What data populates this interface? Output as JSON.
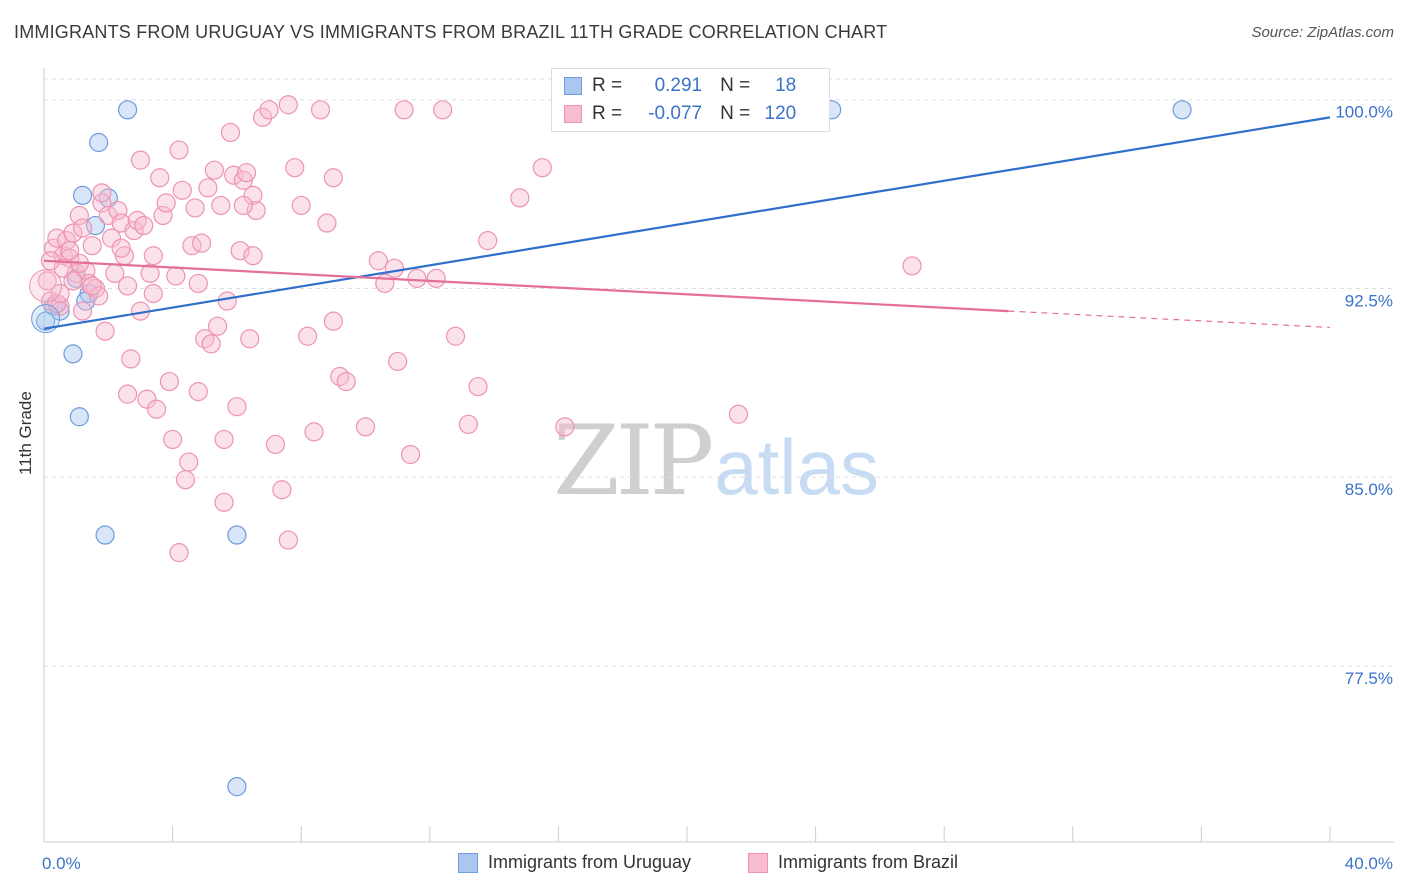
{
  "title": "IMMIGRANTS FROM URUGUAY VS IMMIGRANTS FROM BRAZIL 11TH GRADE CORRELATION CHART",
  "source": "Source: ZipAtlas.com",
  "watermark": {
    "zip": "ZIP",
    "atlas": "atlas"
  },
  "legend": {
    "uruguay": {
      "r_label": "R =",
      "r_value": "0.291",
      "n_label": "N =",
      "n_value": "18"
    },
    "brazil": {
      "r_label": "R =",
      "r_value": "-0.077",
      "n_label": "N =",
      "n_value": "120"
    }
  },
  "colors": {
    "uruguay_fill": "#aac8ef",
    "uruguay_stroke": "#6d9bdc",
    "uruguay_line": "#2f6fcb",
    "brazil_fill": "#f7bcd0",
    "brazil_stroke": "#ee93b2",
    "brazil_line": "#e4709a",
    "tick_label": "#3b73c8",
    "grid": "#dddddd"
  },
  "chart_data": {
    "type": "scatter",
    "xlabel": "",
    "ylabel": "11th Grade",
    "xlim": [
      0,
      40
    ],
    "ylim": [
      70.5,
      101.5
    ],
    "x_tick_labels": [
      {
        "value": 0,
        "label": "0.0%"
      },
      {
        "value": 40,
        "label": "40.0%"
      }
    ],
    "x_minor_ticks": [
      0,
      4,
      8,
      12,
      16,
      20,
      24,
      28,
      32,
      36,
      40
    ],
    "y_ticks": [
      {
        "value": 100,
        "label": "100.0%"
      },
      {
        "value": 92.5,
        "label": "92.5%"
      },
      {
        "value": 85,
        "label": "85.0%"
      },
      {
        "value": 77.5,
        "label": "77.5%"
      }
    ],
    "grid": true,
    "legend_position": "top-center",
    "series": [
      {
        "name": "Immigrants from Uruguay",
        "key": "uruguay",
        "points": [
          [
            0.05,
            91.2
          ],
          [
            0.3,
            91.8
          ],
          [
            0.5,
            91.6
          ],
          [
            1.4,
            92.3
          ],
          [
            1.3,
            92.0
          ],
          [
            1.0,
            92.9
          ],
          [
            0.9,
            89.9
          ],
          [
            1.1,
            87.4
          ],
          [
            1.2,
            96.2
          ],
          [
            2.0,
            96.1
          ],
          [
            1.6,
            95.0
          ],
          [
            1.7,
            98.3
          ],
          [
            2.6,
            99.6
          ],
          [
            1.9,
            82.7
          ],
          [
            6.0,
            82.7
          ],
          [
            6.0,
            72.7
          ],
          [
            24.5,
            99.6
          ],
          [
            35.4,
            99.6
          ]
        ],
        "trend": {
          "x": [
            0,
            40
          ],
          "y": [
            90.9,
            99.3
          ]
        }
      },
      {
        "name": "Immigrants from Brazil",
        "key": "brazil",
        "points": [
          [
            0.1,
            92.8
          ],
          [
            0.2,
            92.0
          ],
          [
            0.3,
            94.1
          ],
          [
            0.4,
            94.5
          ],
          [
            0.5,
            91.8
          ],
          [
            0.6,
            93.8
          ],
          [
            0.7,
            94.4
          ],
          [
            0.8,
            93.7
          ],
          [
            0.9,
            94.7
          ],
          [
            1.0,
            93.1
          ],
          [
            1.1,
            95.4
          ],
          [
            1.2,
            94.9
          ],
          [
            1.3,
            93.2
          ],
          [
            1.4,
            92.7
          ],
          [
            1.5,
            94.2
          ],
          [
            1.6,
            92.5
          ],
          [
            1.7,
            92.2
          ],
          [
            1.8,
            95.9
          ],
          [
            1.9,
            90.8
          ],
          [
            2.0,
            95.4
          ],
          [
            2.1,
            94.5
          ],
          [
            2.2,
            93.1
          ],
          [
            2.3,
            95.6
          ],
          [
            2.4,
            95.1
          ],
          [
            2.5,
            93.8
          ],
          [
            2.6,
            92.6
          ],
          [
            2.7,
            89.7
          ],
          [
            2.8,
            94.8
          ],
          [
            2.9,
            95.2
          ],
          [
            3.0,
            91.6
          ],
          [
            3.1,
            95.0
          ],
          [
            3.2,
            88.1
          ],
          [
            3.3,
            93.1
          ],
          [
            3.4,
            93.8
          ],
          [
            3.5,
            87.7
          ],
          [
            3.6,
            96.9
          ],
          [
            3.7,
            95.4
          ],
          [
            3.8,
            95.9
          ],
          [
            3.9,
            88.8
          ],
          [
            4.0,
            86.5
          ],
          [
            4.1,
            93.0
          ],
          [
            4.2,
            98.0
          ],
          [
            4.3,
            96.4
          ],
          [
            4.4,
            84.9
          ],
          [
            4.5,
            85.6
          ],
          [
            4.6,
            94.2
          ],
          [
            4.7,
            95.7
          ],
          [
            4.8,
            88.4
          ],
          [
            4.9,
            94.3
          ],
          [
            5.0,
            90.5
          ],
          [
            5.1,
            96.5
          ],
          [
            5.2,
            90.3
          ],
          [
            5.3,
            97.2
          ],
          [
            5.4,
            91.0
          ],
          [
            5.5,
            95.8
          ],
          [
            5.6,
            86.5
          ],
          [
            5.7,
            92.0
          ],
          [
            5.8,
            98.7
          ],
          [
            5.9,
            97.0
          ],
          [
            6.0,
            87.8
          ],
          [
            6.1,
            94.0
          ],
          [
            6.2,
            96.8
          ],
          [
            6.3,
            97.1
          ],
          [
            6.4,
            90.5
          ],
          [
            6.5,
            96.2
          ],
          [
            6.6,
            95.6
          ],
          [
            6.8,
            99.3
          ],
          [
            7.0,
            99.6
          ],
          [
            7.2,
            86.3
          ],
          [
            7.4,
            84.5
          ],
          [
            7.6,
            99.8
          ],
          [
            7.8,
            97.3
          ],
          [
            8.0,
            95.8
          ],
          [
            8.2,
            90.6
          ],
          [
            8.4,
            86.8
          ],
          [
            8.6,
            99.6
          ],
          [
            9.0,
            91.2
          ],
          [
            9.2,
            89.0
          ],
          [
            9.4,
            88.8
          ],
          [
            10.0,
            87.0
          ],
          [
            10.4,
            93.6
          ],
          [
            10.6,
            92.7
          ],
          [
            11.0,
            89.6
          ],
          [
            11.2,
            99.6
          ],
          [
            11.4,
            85.9
          ],
          [
            11.6,
            92.9
          ],
          [
            12.4,
            99.6
          ],
          [
            12.8,
            90.6
          ],
          [
            13.2,
            87.1
          ],
          [
            13.8,
            94.4
          ],
          [
            14.8,
            96.1
          ],
          [
            15.5,
            97.3
          ],
          [
            16.2,
            87.0
          ],
          [
            21.6,
            87.5
          ],
          [
            27.0,
            93.4
          ],
          [
            5.6,
            84.0
          ],
          [
            4.2,
            82.0
          ],
          [
            7.6,
            82.5
          ],
          [
            2.6,
            88.3
          ],
          [
            3.4,
            92.3
          ],
          [
            4.8,
            92.7
          ],
          [
            6.2,
            95.8
          ],
          [
            1.1,
            93.5
          ],
          [
            0.6,
            93.3
          ],
          [
            9.0,
            96.9
          ],
          [
            3.0,
            97.6
          ],
          [
            8.8,
            95.1
          ],
          [
            2.4,
            94.1
          ],
          [
            1.8,
            96.3
          ],
          [
            1.5,
            92.6
          ],
          [
            0.9,
            92.8
          ],
          [
            0.4,
            91.9
          ],
          [
            1.2,
            91.6
          ],
          [
            12.2,
            92.9
          ],
          [
            10.9,
            93.3
          ],
          [
            0.2,
            93.6
          ],
          [
            0.8,
            94.0
          ],
          [
            0.5,
            92.3
          ],
          [
            13.5,
            88.6
          ],
          [
            6.5,
            93.8
          ]
        ],
        "trend": {
          "x": [
            0,
            30
          ],
          "y": [
            93.6,
            91.6
          ]
        },
        "trend_extension": {
          "x": [
            30,
            40
          ],
          "y": [
            91.6,
            90.95
          ]
        }
      }
    ]
  },
  "bottom_legend": {
    "uruguay": "Immigrants from Uruguay",
    "brazil": "Immigrants from Brazil"
  }
}
